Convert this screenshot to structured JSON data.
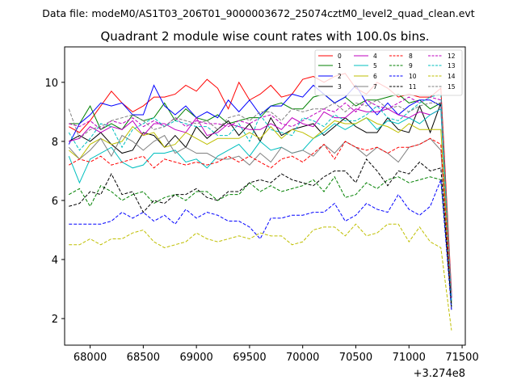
{
  "suptitle": "Data file: modeM0/AS1T03_206T01_9000003672_25074cztM0_level2_quad_clean.evt",
  "chart_data": {
    "type": "line",
    "title": "Quadrant 2 module wise count rates with 100.0s bins.",
    "xlabel": "",
    "ylabel": "",
    "x_offset_label": "+3.274e8",
    "xlim": [
      67760,
      71530
    ],
    "ylim": [
      1.1,
      11.2
    ],
    "x_ticks": [
      68000,
      68500,
      69000,
      69500,
      70000,
      70500,
      71000,
      71500
    ],
    "x_tick_labels": [
      "68000",
      "68500",
      "69000",
      "69500",
      "70000",
      "70500",
      "71000",
      "71500"
    ],
    "y_ticks": [
      2,
      4,
      6,
      8,
      10
    ],
    "y_tick_labels": [
      "2",
      "4",
      "6",
      "8",
      "10"
    ],
    "grid": false,
    "legend_position": "top-right",
    "x": [
      67800,
      67900,
      68000,
      68100,
      68200,
      68300,
      68400,
      68500,
      68600,
      68700,
      68800,
      68900,
      69000,
      69100,
      69200,
      69300,
      69400,
      69500,
      69600,
      69700,
      69800,
      69900,
      70000,
      70100,
      70200,
      70300,
      70400,
      70500,
      70600,
      70700,
      70800,
      70900,
      71000,
      71100,
      71200,
      71300,
      71400
    ],
    "series": [
      {
        "name": "0",
        "color": "#ff0000",
        "dash": "solid",
        "values": [
          8.5,
          8.3,
          8.7,
          9.2,
          9.7,
          9.3,
          9.0,
          9.2,
          9.5,
          9.5,
          9.6,
          9.9,
          9.7,
          10.1,
          9.8,
          9.1,
          10.0,
          9.4,
          9.6,
          9.9,
          9.5,
          9.6,
          10.1,
          10.2,
          10.0,
          10.2,
          10.3,
          9.8,
          9.6,
          10.0,
          9.8,
          9.5,
          9.6,
          9.5,
          9.5,
          9.8,
          2.9
        ]
      },
      {
        "name": "1",
        "color": "#008000",
        "dash": "solid",
        "values": [
          8.6,
          8.6,
          9.2,
          8.4,
          8.6,
          8.4,
          8.9,
          8.7,
          8.8,
          9.3,
          8.7,
          9.1,
          8.8,
          8.7,
          8.9,
          8.6,
          8.7,
          8.8,
          8.8,
          9.2,
          9.3,
          9.1,
          9.1,
          9.5,
          9.6,
          9.3,
          9.5,
          9.2,
          9.4,
          9.4,
          9.5,
          9.6,
          9.3,
          9.4,
          9.1,
          9.3,
          2.7
        ]
      },
      {
        "name": "2",
        "color": "#0000ff",
        "dash": "solid",
        "values": [
          7.9,
          8.6,
          8.9,
          9.3,
          9.2,
          9.3,
          8.9,
          8.9,
          9.9,
          9.2,
          8.9,
          9.2,
          8.8,
          9.0,
          8.8,
          9.4,
          9.0,
          9.4,
          8.9,
          9.2,
          9.2,
          9.6,
          9.5,
          9.9,
          9.6,
          9.3,
          9.5,
          9.9,
          9.3,
          8.9,
          9.3,
          8.9,
          9.2,
          9.4,
          9.4,
          9.2,
          2.5
        ]
      },
      {
        "name": "3",
        "color": "#000000",
        "dash": "solid",
        "values": [
          8.0,
          8.2,
          8.0,
          8.3,
          7.9,
          7.6,
          7.7,
          8.3,
          8.2,
          7.8,
          8.2,
          7.8,
          8.5,
          8.1,
          8.4,
          8.7,
          8.2,
          8.6,
          8.0,
          8.8,
          8.2,
          8.4,
          8.5,
          8.6,
          8.2,
          8.5,
          8.8,
          8.5,
          8.3,
          8.3,
          8.8,
          8.4,
          8.3,
          9.2,
          8.3,
          9.3,
          2.7
        ]
      },
      {
        "name": "4",
        "color": "#bf00bf",
        "dash": "solid",
        "values": [
          8.0,
          8.1,
          8.5,
          8.3,
          8.5,
          8.4,
          8.7,
          8.2,
          8.6,
          8.6,
          8.4,
          8.3,
          8.8,
          8.2,
          8.3,
          8.6,
          8.5,
          8.4,
          8.4,
          8.6,
          8.4,
          8.8,
          8.6,
          8.5,
          9.0,
          8.8,
          8.8,
          9.1,
          9.0,
          9.0,
          9.1,
          8.9,
          8.8,
          9.0,
          8.9,
          9.1,
          2.8
        ]
      },
      {
        "name": "5",
        "color": "#00bfbf",
        "dash": "solid",
        "values": [
          7.5,
          6.6,
          7.4,
          7.6,
          7.8,
          7.3,
          7.1,
          7.2,
          7.6,
          7.6,
          7.7,
          7.3,
          7.4,
          7.1,
          7.5,
          7.7,
          7.9,
          7.5,
          8.0,
          7.7,
          7.8,
          7.6,
          7.7,
          8.1,
          8.3,
          8.6,
          8.4,
          8.6,
          8.8,
          8.4,
          8.7,
          8.6,
          8.8,
          8.6,
          8.9,
          9.1,
          2.4
        ]
      },
      {
        "name": "6",
        "color": "#bfbf00",
        "dash": "solid",
        "values": [
          7.7,
          7.4,
          7.9,
          8.1,
          7.9,
          8.0,
          8.5,
          8.2,
          8.3,
          7.8,
          7.9,
          8.3,
          8.1,
          7.9,
          8.1,
          8.1,
          8.1,
          8.3,
          8.1,
          8.5,
          8.1,
          8.4,
          8.3,
          8.1,
          8.4,
          8.7,
          8.6,
          8.6,
          8.8,
          8.6,
          8.5,
          8.3,
          8.6,
          8.4,
          8.4,
          8.4,
          2.5
        ]
      },
      {
        "name": "7",
        "color": "#808080",
        "dash": "solid",
        "values": [
          7.8,
          7.4,
          7.7,
          8.1,
          7.5,
          8.2,
          8.0,
          7.7,
          8.0,
          8.2,
          7.6,
          7.8,
          7.6,
          7.6,
          7.4,
          7.4,
          7.5,
          7.2,
          7.6,
          7.3,
          7.8,
          7.6,
          7.7,
          7.5,
          7.9,
          7.6,
          8.0,
          7.8,
          7.5,
          7.8,
          7.6,
          7.3,
          7.8,
          7.9,
          8.1,
          7.7,
          2.3
        ]
      },
      {
        "name": "8",
        "color": "#ff0000",
        "dash": "dashed",
        "values": [
          7.2,
          7.4,
          7.3,
          7.5,
          7.2,
          7.3,
          7.4,
          7.5,
          7.1,
          7.4,
          7.3,
          7.2,
          7.3,
          7.2,
          7.3,
          7.5,
          7.3,
          7.5,
          7.3,
          7.1,
          7.4,
          7.5,
          7.3,
          7.6,
          7.9,
          7.4,
          8.0,
          7.8,
          7.7,
          7.8,
          7.6,
          7.8,
          7.8,
          7.9,
          8.1,
          7.9,
          2.6
        ]
      },
      {
        "name": "9",
        "color": "#008000",
        "dash": "dashed",
        "values": [
          6.2,
          6.4,
          5.8,
          6.5,
          6.3,
          6.0,
          6.2,
          6.3,
          5.9,
          6.1,
          6.2,
          6.0,
          6.3,
          6.3,
          6.0,
          6.2,
          6.2,
          6.6,
          6.3,
          6.5,
          6.3,
          6.4,
          6.5,
          6.7,
          6.3,
          6.8,
          6.1,
          6.2,
          6.6,
          6.4,
          6.7,
          6.8,
          6.6,
          6.7,
          6.8,
          6.7,
          2.5
        ]
      },
      {
        "name": "10",
        "color": "#0000ff",
        "dash": "dashed",
        "values": [
          5.2,
          5.2,
          5.2,
          5.2,
          5.3,
          5.6,
          5.4,
          5.6,
          5.3,
          5.5,
          5.2,
          5.7,
          5.4,
          5.6,
          5.5,
          5.3,
          5.3,
          5.1,
          4.7,
          5.4,
          5.4,
          5.5,
          5.5,
          5.6,
          5.6,
          5.9,
          5.3,
          5.5,
          5.9,
          5.7,
          5.6,
          6.2,
          5.7,
          5.5,
          5.8,
          6.7,
          2.3
        ]
      },
      {
        "name": "11",
        "color": "#000000",
        "dash": "dashed",
        "values": [
          5.8,
          5.9,
          6.3,
          6.2,
          6.9,
          6.2,
          6.3,
          5.6,
          6.0,
          5.9,
          6.2,
          6.2,
          6.4,
          6.1,
          6.0,
          6.3,
          6.3,
          6.6,
          6.7,
          6.6,
          6.9,
          6.7,
          6.6,
          6.5,
          6.8,
          7.0,
          7.0,
          6.6,
          7.4,
          7.0,
          6.5,
          7.0,
          6.9,
          7.3,
          7.0,
          7.1,
          2.4
        ]
      },
      {
        "name": "12",
        "color": "#bf00bf",
        "dash": "dashed",
        "values": [
          8.6,
          8.5,
          8.7,
          8.4,
          8.7,
          8.6,
          8.8,
          8.5,
          8.7,
          8.5,
          8.8,
          8.5,
          8.7,
          8.6,
          8.6,
          8.5,
          8.7,
          8.6,
          8.8,
          8.9,
          8.6,
          8.5,
          8.7,
          8.9,
          9.1,
          9.0,
          9.3,
          9.0,
          9.4,
          9.2,
          9.1,
          9.3,
          9.5,
          9.3,
          9.5,
          9.4,
          2.7
        ]
      },
      {
        "name": "13",
        "color": "#00bfbf",
        "dash": "dashed",
        "values": [
          8.3,
          7.7,
          8.1,
          8.6,
          8.5,
          7.8,
          8.4,
          8.6,
          8.8,
          8.5,
          8.7,
          8.6,
          8.5,
          8.5,
          8.2,
          8.2,
          8.6,
          8.0,
          8.9,
          8.4,
          8.3,
          8.2,
          8.8,
          8.7,
          8.5,
          8.9,
          8.7,
          8.7,
          8.9,
          9.2,
          8.8,
          8.7,
          9.0,
          9.3,
          9.5,
          9.6,
          2.6
        ]
      },
      {
        "name": "14",
        "color": "#bfbf00",
        "dash": "dashed",
        "values": [
          4.5,
          4.5,
          4.7,
          4.5,
          4.7,
          4.7,
          4.9,
          5.0,
          4.6,
          4.4,
          4.5,
          4.6,
          4.9,
          4.7,
          4.6,
          4.7,
          4.8,
          4.7,
          4.9,
          4.8,
          4.8,
          4.5,
          4.6,
          5.0,
          5.1,
          5.1,
          4.8,
          5.2,
          4.8,
          4.9,
          5.2,
          5.2,
          4.6,
          5.1,
          4.6,
          4.4,
          1.6
        ]
      },
      {
        "name": "15",
        "color": "#808080",
        "dash": "dashed",
        "values": [
          9.1,
          8.1,
          8.4,
          8.5,
          8.7,
          8.8,
          8.9,
          8.7,
          8.4,
          8.5,
          8.8,
          8.7,
          8.6,
          8.7,
          8.4,
          8.8,
          8.9,
          8.7,
          9.0,
          9.0,
          8.7,
          9.1,
          9.0,
          9.1,
          9.1,
          9.3,
          9.0,
          9.3,
          9.2,
          9.4,
          9.1,
          9.2,
          9.0,
          9.2,
          9.3,
          9.3,
          2.8
        ]
      }
    ]
  }
}
